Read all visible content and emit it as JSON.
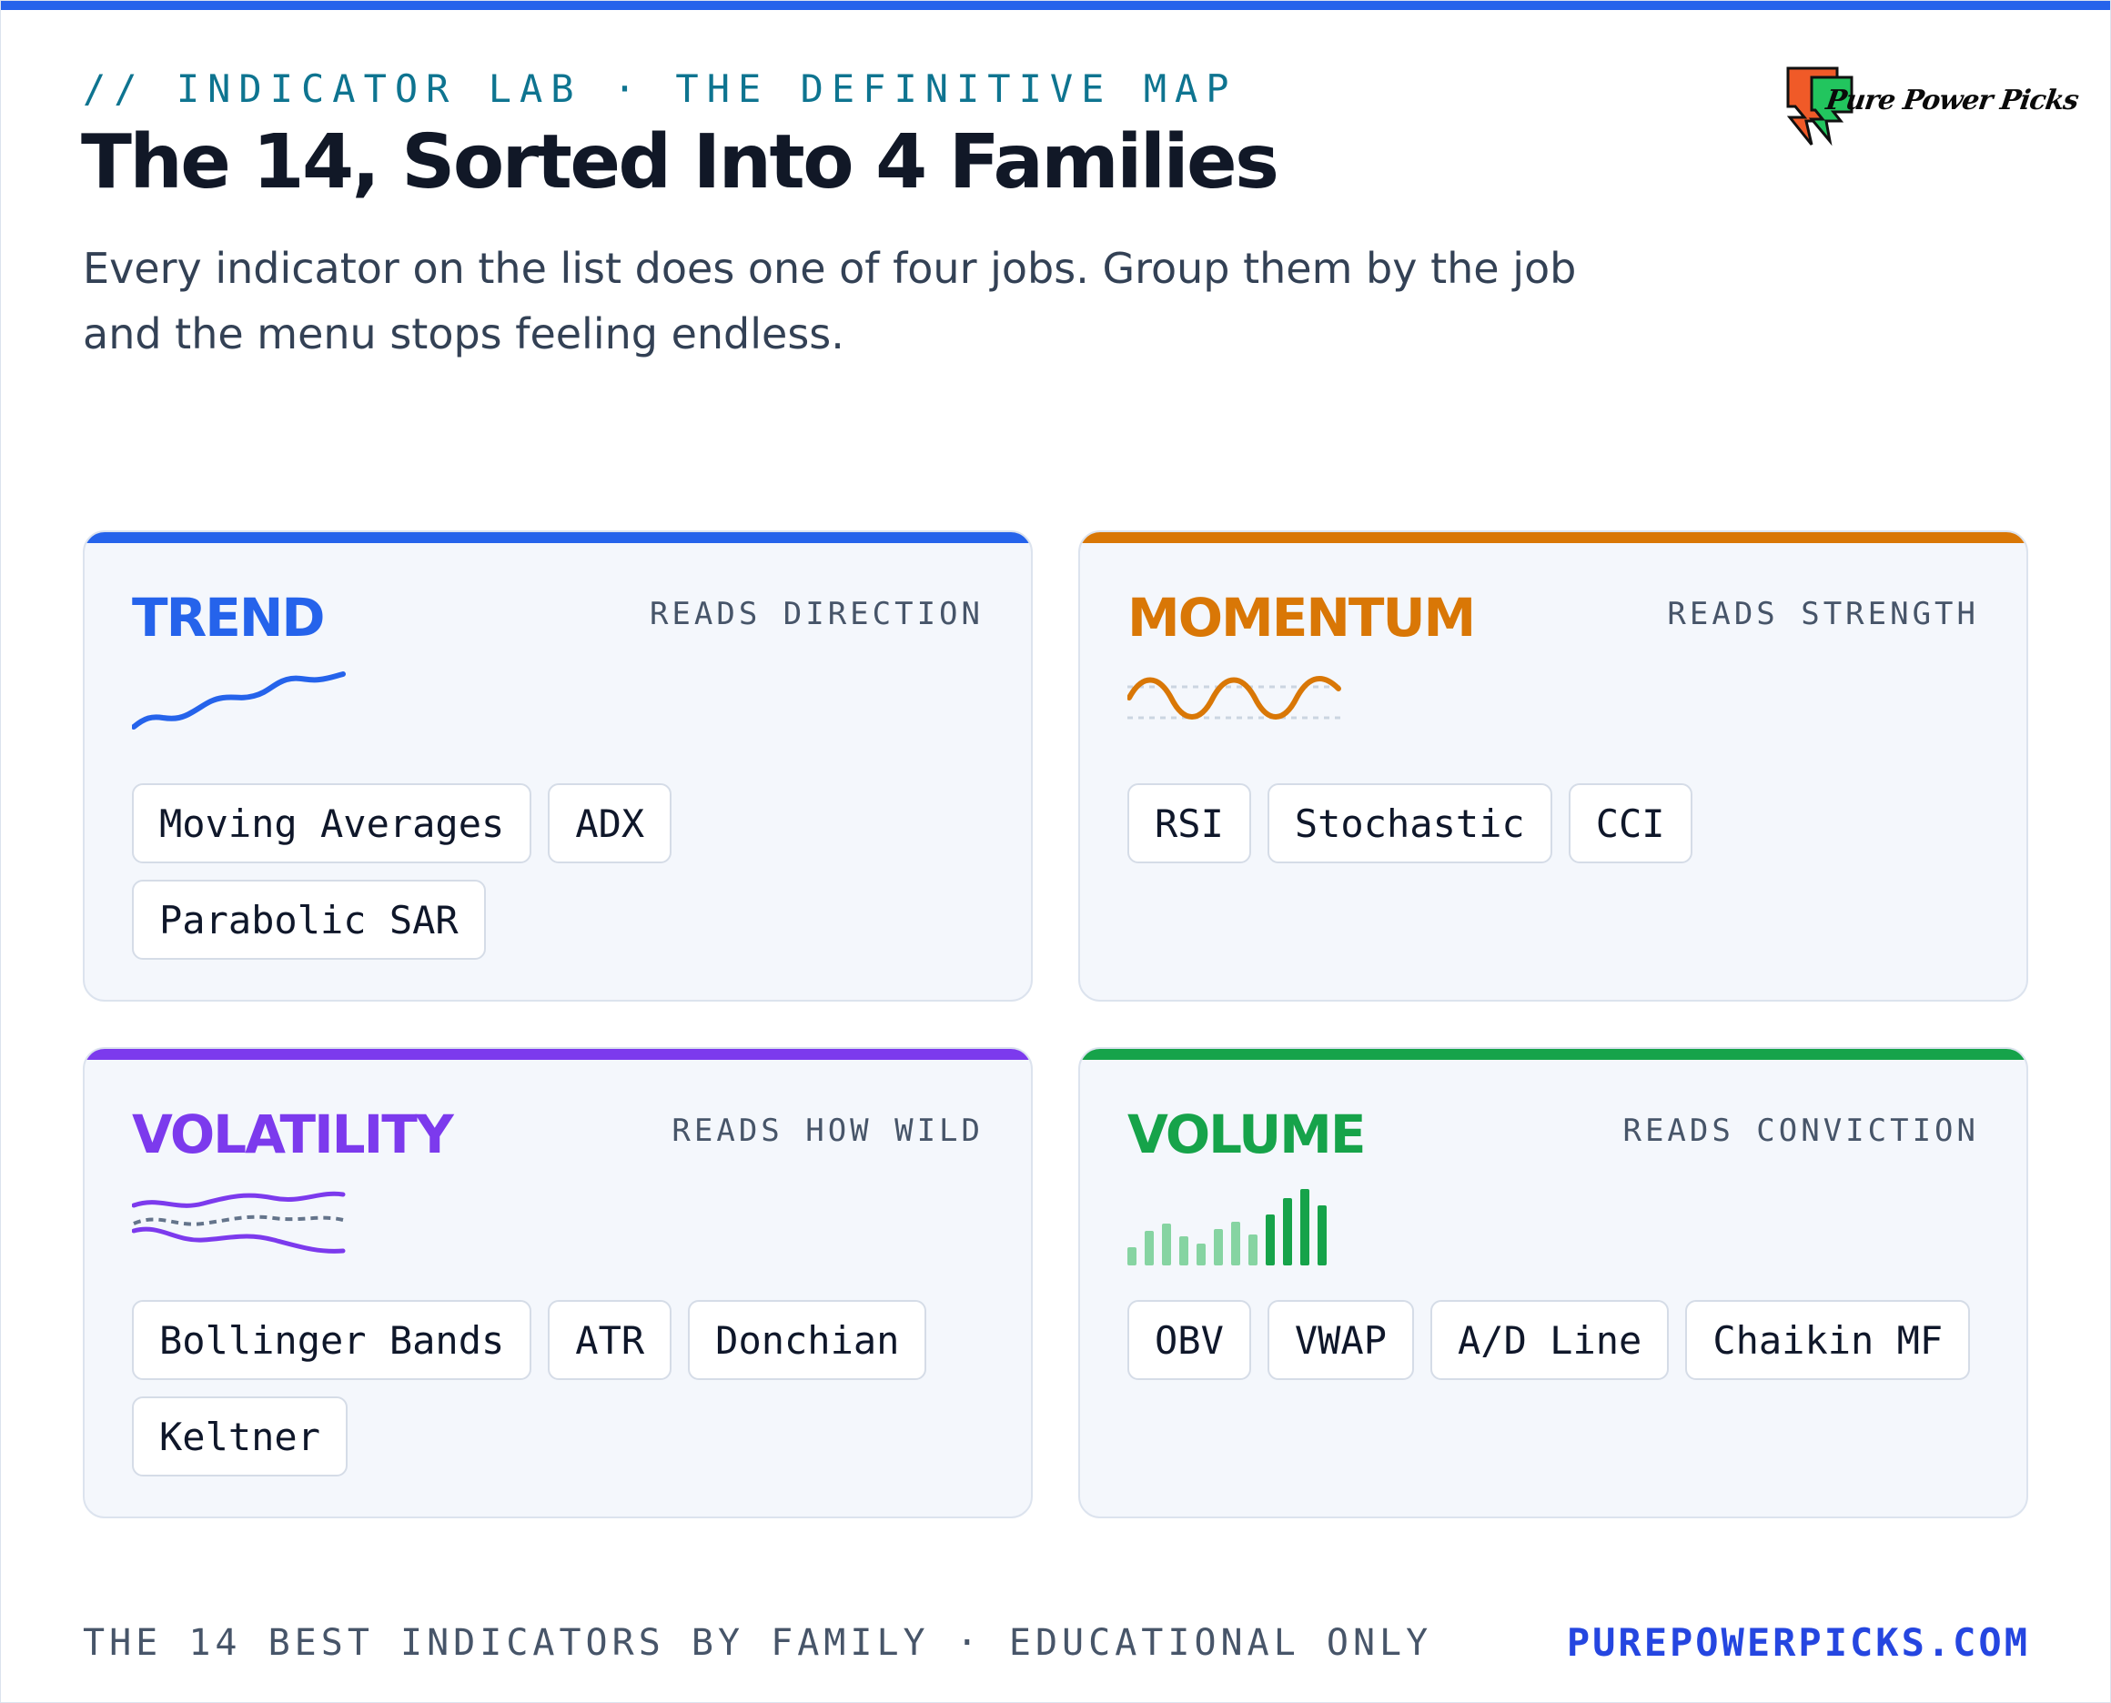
{
  "header": {
    "kicker": "// INDICATOR LAB · THE DEFINITIVE MAP",
    "title": "The 14, Sorted Into 4 Families",
    "subtitle": "Every indicator on the list does one of four jobs. Group them by the job and the menu stops feeling endless."
  },
  "brand": {
    "logo_text": "Pure Power Picks",
    "colors": {
      "accent": "#2563eb",
      "logo_orange": "#f05a28",
      "logo_green": "#22c55e"
    }
  },
  "families": [
    {
      "name": "TREND",
      "reads": "READS DIRECTION",
      "color": "#2563eb",
      "icon": "rising-line-icon",
      "indicators": [
        "Moving Averages",
        "ADX",
        "Parabolic SAR"
      ]
    },
    {
      "name": "MOMENTUM",
      "reads": "READS STRENGTH",
      "color": "#d97706",
      "icon": "oscillator-wave-icon",
      "indicators": [
        "RSI",
        "Stochastic",
        "CCI"
      ]
    },
    {
      "name": "VOLATILITY",
      "reads": "READS HOW WILD",
      "color": "#7c3aed",
      "icon": "bands-icon",
      "indicators": [
        "Bollinger Bands",
        "ATR",
        "Donchian",
        "Keltner"
      ]
    },
    {
      "name": "VOLUME",
      "reads": "READS CONVICTION",
      "color": "#16a34a",
      "icon": "volume-bars-icon",
      "indicators": [
        "OBV",
        "VWAP",
        "A/D Line",
        "Chaikin MF"
      ]
    }
  ],
  "footer": {
    "left": "THE 14 BEST INDICATORS BY FAMILY · EDUCATIONAL ONLY",
    "right": "PUREPOWERPICKS.COM"
  }
}
